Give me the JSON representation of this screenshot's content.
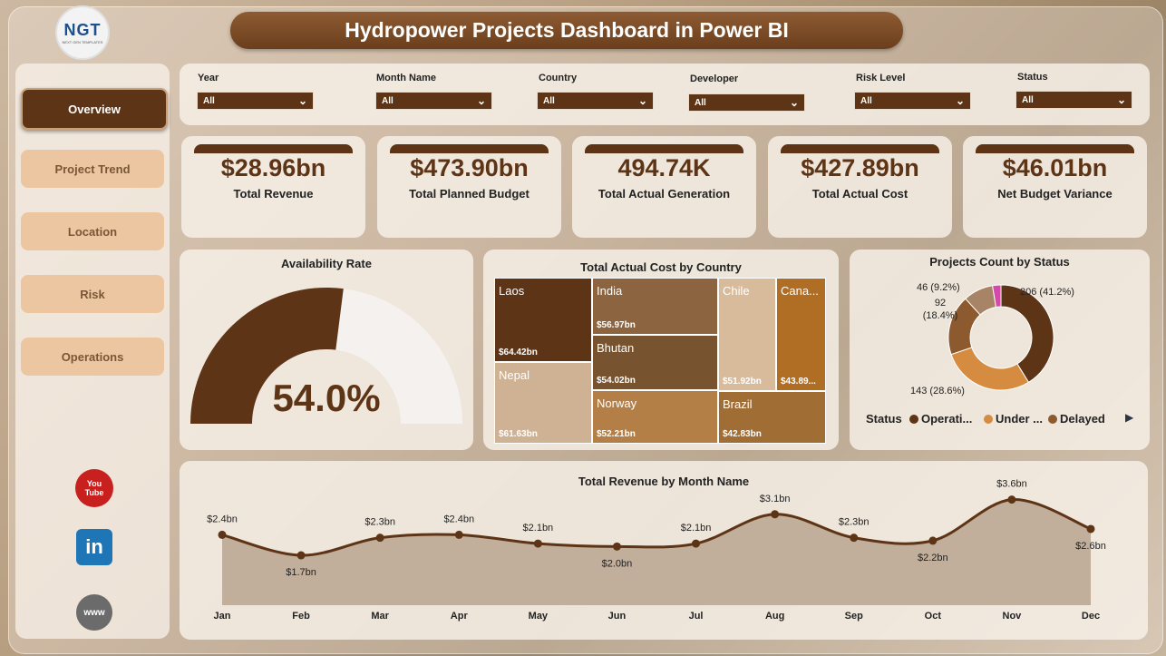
{
  "header": {
    "title": "Hydropower Projects Dashboard in Power BI",
    "logo_text": "NGT",
    "logo_subtext": "NEXT GEN TEMPLATES"
  },
  "sidebar": {
    "items": [
      {
        "label": "Overview",
        "active": true
      },
      {
        "label": "Project Trend",
        "active": false
      },
      {
        "label": "Location",
        "active": false
      },
      {
        "label": "Risk",
        "active": false
      },
      {
        "label": "Operations",
        "active": false
      }
    ],
    "social": [
      {
        "icon": "youtube-icon",
        "text": "You Tube",
        "color": "#c8201e"
      },
      {
        "icon": "linkedin-icon",
        "text": "in",
        "color": "#1e76b6"
      },
      {
        "icon": "globe-icon",
        "text": "www",
        "color": "#6b6b6b"
      }
    ]
  },
  "filters": [
    {
      "label": "Year",
      "value": "All"
    },
    {
      "label": "Month Name",
      "value": "All"
    },
    {
      "label": "Country",
      "value": "All"
    },
    {
      "label": "Developer",
      "value": "All"
    },
    {
      "label": "Risk Level",
      "value": "All"
    },
    {
      "label": "Status",
      "value": "All"
    }
  ],
  "kpis": [
    {
      "value": "$28.96bn",
      "label": "Total Revenue"
    },
    {
      "value": "$473.90bn",
      "label": "Total Planned Budget"
    },
    {
      "value": "494.74K",
      "label": "Total Actual Generation"
    },
    {
      "value": "$427.89bn",
      "label": "Total Actual Cost"
    },
    {
      "value": "$46.01bn",
      "label": "Net Budget Variance"
    }
  ],
  "availability": {
    "title": "Availability Rate",
    "value_text": "54.0%",
    "fraction": 0.54
  },
  "treemap": {
    "title": "Total Actual Cost by Country",
    "cells": [
      {
        "name": "Laos",
        "value": "$64.42bn",
        "color": "#5e3416"
      },
      {
        "name": "Nepal",
        "value": "$61.63bn",
        "color": "#cfb294"
      },
      {
        "name": "India",
        "value": "$56.97bn",
        "color": "#8c6440"
      },
      {
        "name": "Bhutan",
        "value": "$54.02bn",
        "color": "#77532f"
      },
      {
        "name": "Norway",
        "value": "$52.21bn",
        "color": "#b47f47"
      },
      {
        "name": "Chile",
        "value": "$51.92bn",
        "color": "#d8bb9b"
      },
      {
        "name": "Cana...",
        "value": "$43.89...",
        "color": "#b06d24"
      },
      {
        "name": "Brazil",
        "value": "$42.83bn",
        "color": "#a06d35"
      }
    ]
  },
  "donut": {
    "title": "Projects Count by Status",
    "slices": [
      {
        "label": "206 (41.2%)",
        "value": 206,
        "color": "#5e3416"
      },
      {
        "label": "143 (28.6%)",
        "value": 143,
        "color": "#d58b40"
      },
      {
        "label": "92\n(18.4%)",
        "value": 92,
        "color": "#8c5a2e"
      },
      {
        "label": "46 (9.2%)",
        "value": 46,
        "color": "#a88466"
      },
      {
        "label": "",
        "value": 13,
        "color": "#d44aa8"
      }
    ],
    "legend_title": "Status",
    "legend": [
      {
        "name": "Operati...",
        "color": "#5e3416"
      },
      {
        "name": "Under ...",
        "color": "#d58b40"
      },
      {
        "name": "Delayed",
        "color": "#8c5a2e"
      }
    ]
  },
  "chart_data": {
    "type": "area",
    "title": "Total Revenue by Month Name",
    "categories": [
      "Jan",
      "Feb",
      "Mar",
      "Apr",
      "May",
      "Jun",
      "Jul",
      "Aug",
      "Sep",
      "Oct",
      "Nov",
      "Dec"
    ],
    "series": [
      {
        "values": [
          2.4,
          1.7,
          2.3,
          2.4,
          2.1,
          2.0,
          2.1,
          3.1,
          2.3,
          2.2,
          3.6,
          2.6
        ]
      }
    ],
    "data_labels": [
      "$2.4bn",
      "$1.7bn",
      "$2.3bn",
      "$2.4bn",
      "$2.1bn",
      "$2.0bn",
      "$2.1bn",
      "$3.1bn",
      "$2.3bn",
      "$2.2bn",
      "$3.6bn",
      "$2.6bn"
    ],
    "grid": false,
    "line_color": "#5e3416",
    "fill_color": "#b9a58f"
  }
}
